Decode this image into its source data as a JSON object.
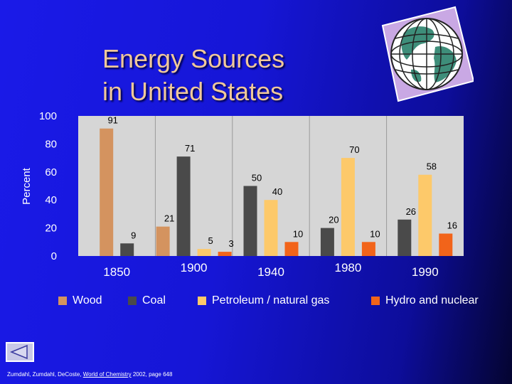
{
  "slide": {
    "title_line1": "Energy Sources",
    "title_line2": "in United States",
    "citation": {
      "authors": "Zumdahl, Zumdahl, DeCoste,",
      "work": "World of Chemistry",
      "rest": "2002, page 648"
    }
  },
  "colors": {
    "Wood": "#d4935f",
    "Coal": "#4a4a4a",
    "Petroleum / natural gas": "#fdc96a",
    "Hydro and nuclear": "#f2641a"
  },
  "icons": {
    "globe": "globe-icon",
    "nav": "back-arrow-icon"
  },
  "chart_data": {
    "type": "bar",
    "ylabel": "Percent",
    "ylim": [
      0,
      100
    ],
    "yticks": [
      0,
      20,
      40,
      60,
      80,
      100
    ],
    "grid": "vertical separators between year groups",
    "legend_position": "bottom",
    "categories": [
      "1850",
      "1900",
      "1940",
      "1980",
      "1990"
    ],
    "series": [
      {
        "name": "Wood",
        "values": [
          91,
          21,
          null,
          null,
          null
        ]
      },
      {
        "name": "Coal",
        "values": [
          9,
          71,
          50,
          20,
          26
        ]
      },
      {
        "name": "Petroleum / natural gas",
        "values": [
          null,
          5,
          40,
          70,
          58
        ]
      },
      {
        "name": "Hydro and nuclear",
        "values": [
          null,
          3,
          10,
          10,
          16
        ]
      }
    ]
  }
}
